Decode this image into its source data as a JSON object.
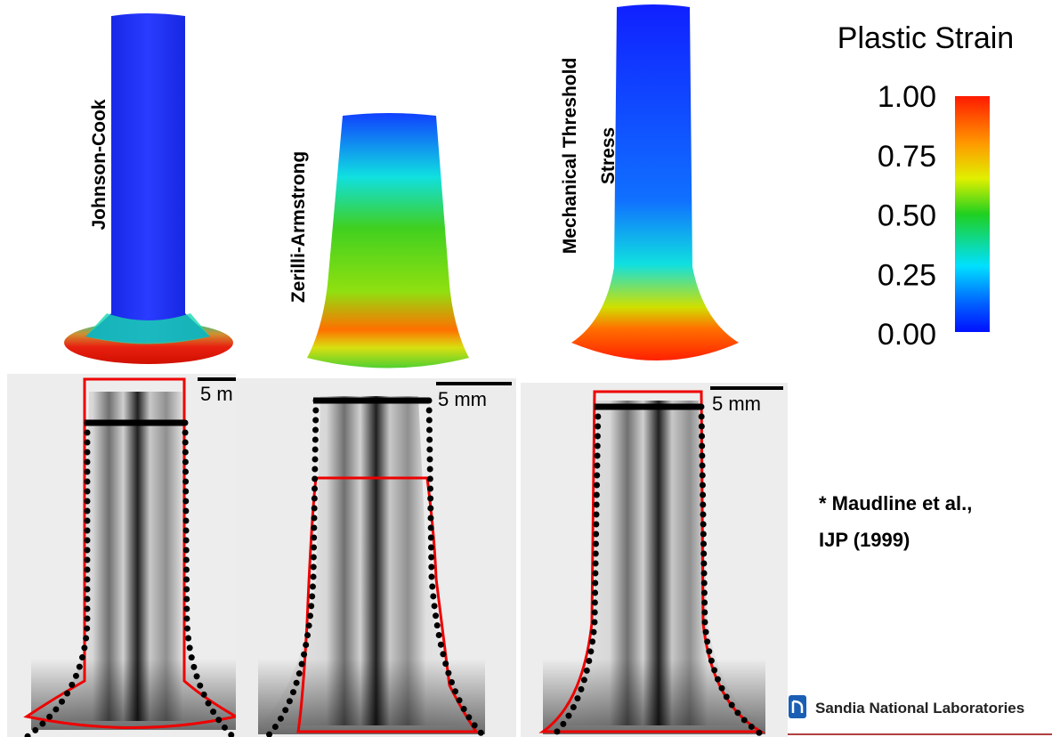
{
  "models": [
    {
      "label": "Johnson-Cook"
    },
    {
      "label": "Zerilli-Armstrong"
    },
    {
      "label_lines": [
        "Mechanical Threshold",
        "Stress"
      ]
    }
  ],
  "colorbar": {
    "title": "Plastic Strain",
    "ticks": [
      "1.00",
      "0.75",
      "0.50",
      "0.25",
      "0.00"
    ]
  },
  "scale_bars": [
    "5 m",
    "5 mm",
    "5 mm"
  ],
  "citation": [
    "* Maudline et al.,",
    "IJP (1999)"
  ],
  "logo": "Sandia National Laboratories"
}
